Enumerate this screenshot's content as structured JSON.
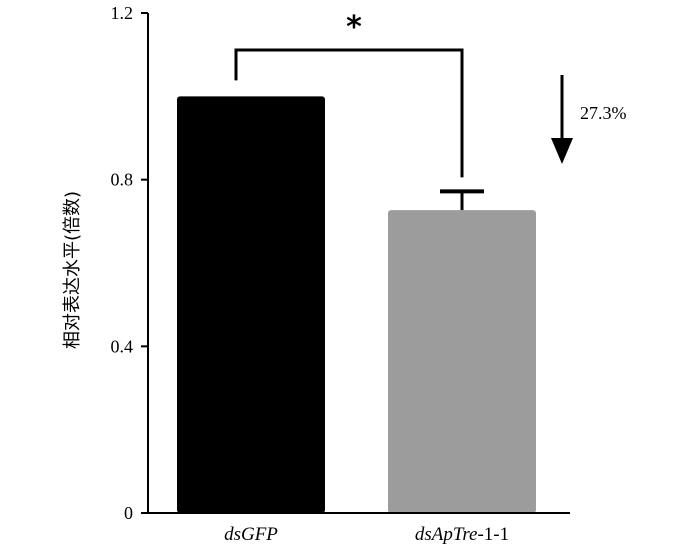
{
  "chart_data": {
    "type": "bar",
    "categories": [
      "dsGFP",
      "dsApTre-1-1"
    ],
    "category_parts": [
      {
        "italic": "dsGFP",
        "plain": ""
      },
      {
        "italic": "dsApTre",
        "plain": "-1-1"
      }
    ],
    "values": [
      1.0,
      0.727
    ],
    "errors": [
      0.0,
      0.045
    ],
    "colors": [
      "#000000",
      "#9c9c9c"
    ],
    "ylabel": "相对表达水平(倍数)",
    "ylim": [
      0,
      1.2
    ],
    "yticks": [
      0,
      0.4,
      0.8,
      1.2
    ],
    "ytick_labels": [
      "0",
      "0.4",
      "0.8",
      "1.2"
    ],
    "significance": "*",
    "annotation": "27.3%",
    "grid": false
  }
}
